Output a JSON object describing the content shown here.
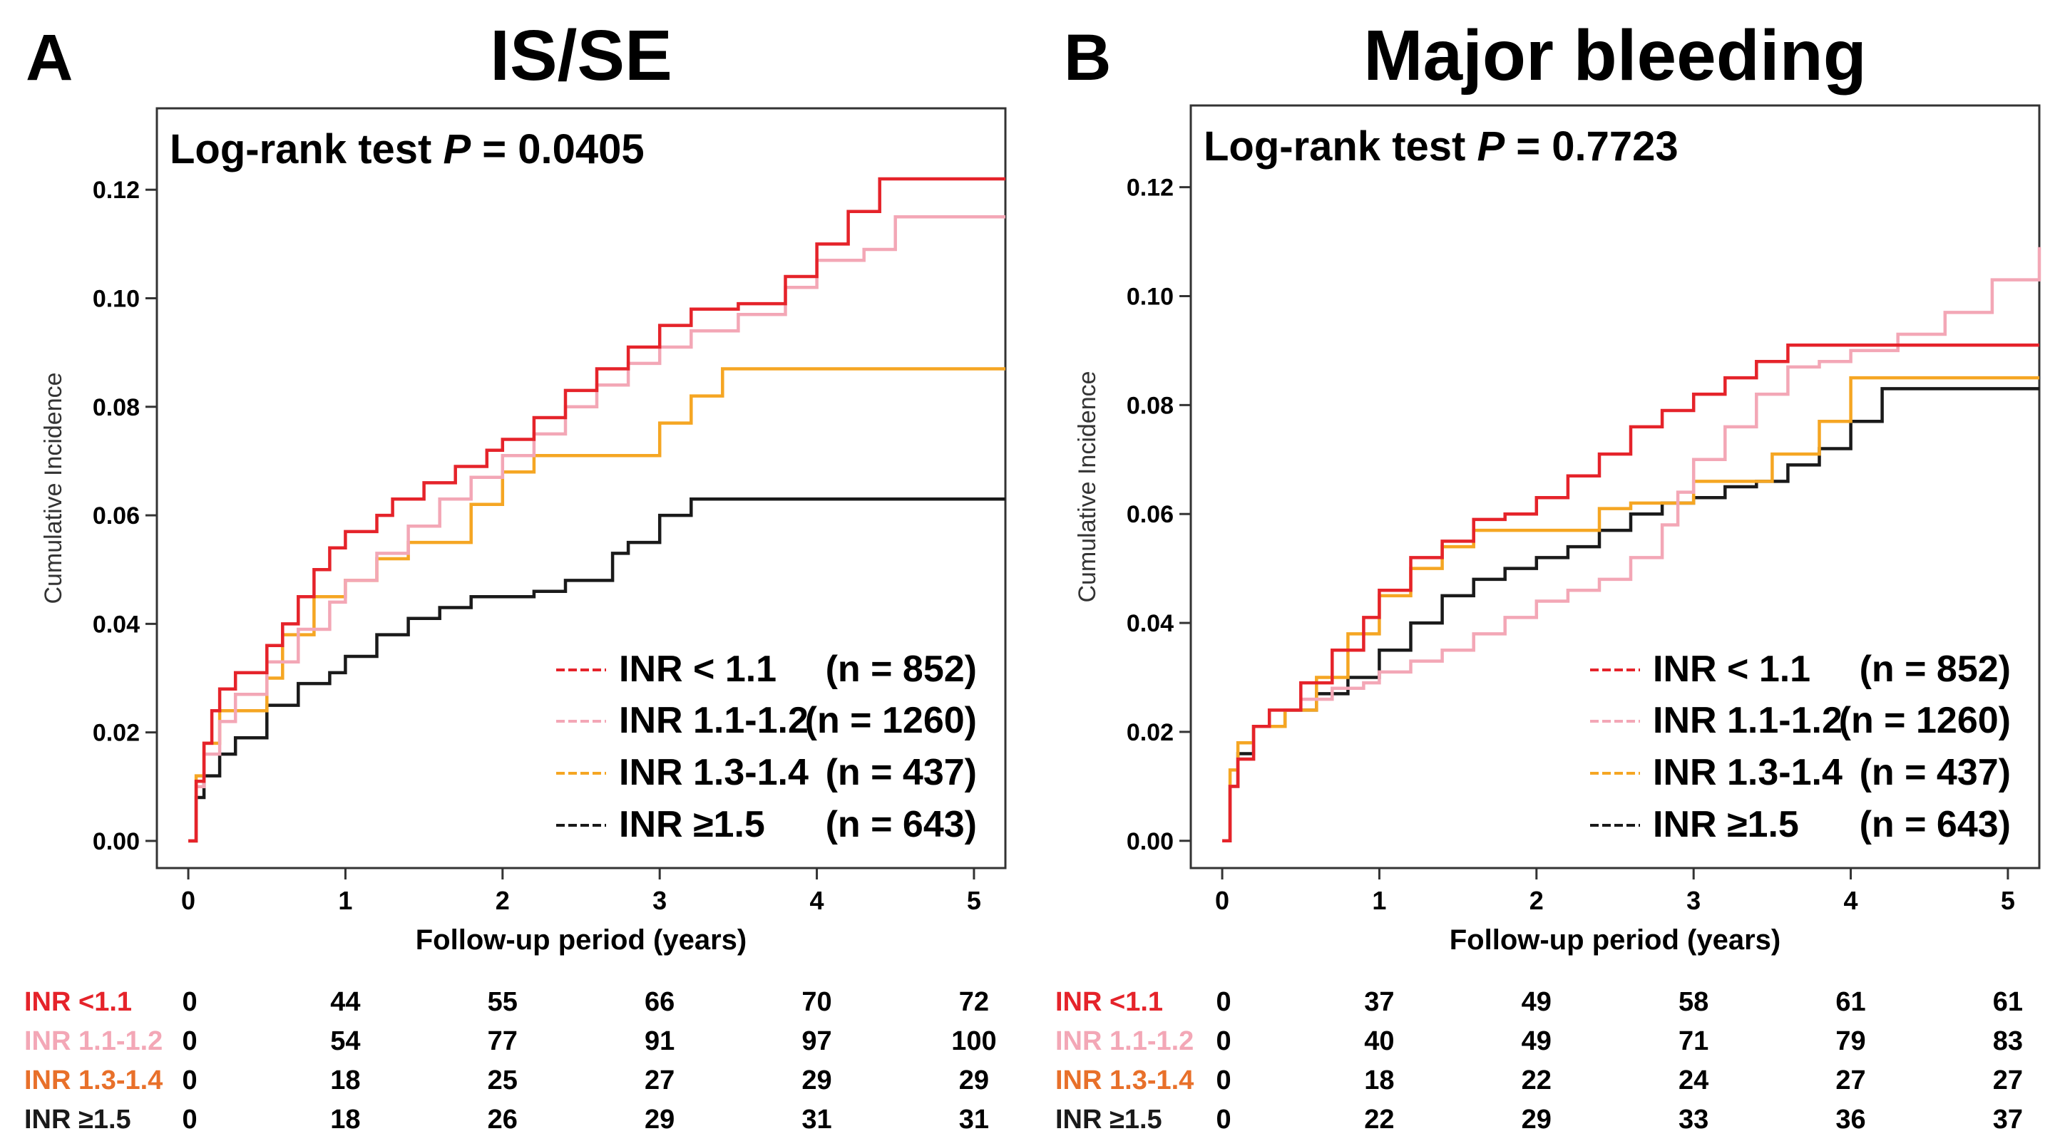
{
  "figure": {
    "palette": {
      "inr_lt_1_1": "#e5232a",
      "inr_1_1_1_2": "#f3a7b6",
      "inr_1_3_1_4": "#f5a623",
      "inr_ge_1_5": "#1a1a1a",
      "risk_label_1_3_1_4": "#e8702a"
    }
  },
  "chart_data": [
    {
      "type": "line",
      "panel_letter": "A",
      "title": "IS/SE",
      "annotation": {
        "prefix": "Log-rank test ",
        "p_symbol": "P",
        "suffix": " = 0.0405"
      },
      "xlabel": "Follow-up period (years)",
      "ylabel": "Cumulative Incidence",
      "xlim": [
        -0.2,
        5.2
      ],
      "ylim": [
        -0.005,
        0.135
      ],
      "xticks": [
        0,
        1,
        2,
        3,
        4,
        5
      ],
      "xtick_labels": [
        "0",
        "1",
        "2",
        "3",
        "4",
        "5"
      ],
      "yticks": [
        0.0,
        0.02,
        0.04,
        0.06,
        0.08,
        0.1,
        0.12
      ],
      "ytick_labels": [
        "0.00",
        "0.02",
        "0.04",
        "0.06",
        "0.08",
        "0.10",
        "0.12"
      ],
      "legend_position": "bottom-right",
      "series": [
        {
          "name": "INR < 1.1",
          "n_label": "(n = 852)",
          "color_key": "inr_lt_1_1",
          "x": [
            0,
            0.05,
            0.1,
            0.15,
            0.2,
            0.3,
            0.4,
            0.5,
            0.6,
            0.7,
            0.8,
            0.9,
            1.0,
            1.2,
            1.3,
            1.5,
            1.7,
            1.9,
            2.0,
            2.2,
            2.4,
            2.6,
            2.8,
            3.0,
            3.2,
            3.5,
            3.8,
            4.0,
            4.2,
            4.4,
            5.2
          ],
          "y": [
            0,
            0.011,
            0.018,
            0.024,
            0.028,
            0.031,
            0.031,
            0.036,
            0.04,
            0.045,
            0.05,
            0.054,
            0.057,
            0.06,
            0.063,
            0.066,
            0.069,
            0.072,
            0.074,
            0.078,
            0.083,
            0.087,
            0.091,
            0.095,
            0.098,
            0.099,
            0.104,
            0.11,
            0.116,
            0.122,
            0.122
          ]
        },
        {
          "name": "INR 1.1-1.2",
          "n_label": "(n = 1260)",
          "color_key": "inr_1_1_1_2",
          "x": [
            0,
            0.05,
            0.1,
            0.2,
            0.3,
            0.5,
            0.7,
            0.9,
            1.0,
            1.2,
            1.4,
            1.6,
            1.8,
            2.0,
            2.2,
            2.4,
            2.6,
            2.8,
            3.0,
            3.2,
            3.5,
            3.8,
            4.0,
            4.3,
            4.5,
            5.2
          ],
          "y": [
            0,
            0.01,
            0.016,
            0.022,
            0.027,
            0.033,
            0.039,
            0.044,
            0.048,
            0.053,
            0.058,
            0.063,
            0.067,
            0.071,
            0.075,
            0.08,
            0.084,
            0.088,
            0.091,
            0.094,
            0.097,
            0.102,
            0.107,
            0.109,
            0.115,
            0.115
          ]
        },
        {
          "name": "INR 1.3-1.4",
          "n_label": "(n = 437)",
          "color_key": "inr_1_3_1_4",
          "x": [
            0,
            0.05,
            0.1,
            0.2,
            0.5,
            0.6,
            0.8,
            1.0,
            1.2,
            1.4,
            1.6,
            1.8,
            2.0,
            2.2,
            2.4,
            2.6,
            2.8,
            3.0,
            3.2,
            3.4,
            5.2
          ],
          "y": [
            0,
            0.012,
            0.018,
            0.024,
            0.03,
            0.038,
            0.045,
            0.048,
            0.052,
            0.055,
            0.055,
            0.062,
            0.068,
            0.071,
            0.071,
            0.071,
            0.071,
            0.077,
            0.082,
            0.087,
            0.087
          ]
        },
        {
          "name": "INR ≥1.5",
          "n_label": "(n = 643)",
          "color_key": "inr_ge_1_5",
          "x": [
            0,
            0.05,
            0.1,
            0.2,
            0.3,
            0.5,
            0.7,
            0.9,
            1.0,
            1.2,
            1.4,
            1.6,
            1.8,
            2.0,
            2.2,
            2.4,
            2.6,
            2.7,
            2.8,
            3.0,
            3.2,
            5.2
          ],
          "y": [
            0,
            0.008,
            0.012,
            0.016,
            0.019,
            0.025,
            0.029,
            0.031,
            0.034,
            0.038,
            0.041,
            0.043,
            0.045,
            0.045,
            0.046,
            0.048,
            0.048,
            0.053,
            0.055,
            0.06,
            0.063,
            0.063
          ]
        }
      ],
      "risk_table": {
        "x_values": [
          0,
          1,
          2,
          3,
          4,
          5
        ],
        "rows": [
          {
            "label": "INR <1.1",
            "color_key": "inr_lt_1_1",
            "values": [
              "0",
              "44",
              "55",
              "66",
              "70",
              "72"
            ]
          },
          {
            "label": "INR 1.1-1.2",
            "color_key": "inr_1_1_1_2",
            "values": [
              "0",
              "54",
              "77",
              "91",
              "97",
              "100"
            ]
          },
          {
            "label": "INR 1.3-1.4",
            "color_key": "risk_label_1_3_1_4",
            "values": [
              "0",
              "18",
              "25",
              "27",
              "29",
              "29"
            ]
          },
          {
            "label": "INR ≥1.5",
            "color_key": "inr_ge_1_5",
            "values": [
              "0",
              "18",
              "26",
              "29",
              "31",
              "31"
            ]
          }
        ]
      }
    },
    {
      "type": "line",
      "panel_letter": "B",
      "title": "Major bleeding",
      "annotation": {
        "prefix": "Log-rank test ",
        "p_symbol": "P",
        "suffix": " = 0.7723"
      },
      "xlabel": "Follow-up period (years)",
      "ylabel": "Cumulative Incidence",
      "xlim": [
        -0.2,
        5.2
      ],
      "ylim": [
        -0.005,
        0.135
      ],
      "xticks": [
        0,
        1,
        2,
        3,
        4,
        5
      ],
      "xtick_labels": [
        "0",
        "1",
        "2",
        "3",
        "4",
        "5"
      ],
      "yticks": [
        0.0,
        0.02,
        0.04,
        0.06,
        0.08,
        0.1,
        0.12
      ],
      "ytick_labels": [
        "0.00",
        "0.02",
        "0.04",
        "0.06",
        "0.08",
        "0.10",
        "0.12"
      ],
      "legend_position": "bottom-right",
      "series": [
        {
          "name": "INR < 1.1",
          "n_label": "(n = 852)",
          "color_key": "inr_lt_1_1",
          "x": [
            0,
            0.05,
            0.1,
            0.2,
            0.3,
            0.5,
            0.7,
            0.9,
            1.0,
            1.2,
            1.4,
            1.6,
            1.8,
            2.0,
            2.2,
            2.4,
            2.6,
            2.8,
            3.0,
            3.2,
            3.4,
            3.6,
            5.2
          ],
          "y": [
            0,
            0.01,
            0.015,
            0.021,
            0.024,
            0.029,
            0.035,
            0.041,
            0.046,
            0.052,
            0.055,
            0.059,
            0.06,
            0.063,
            0.067,
            0.071,
            0.076,
            0.079,
            0.082,
            0.085,
            0.088,
            0.091,
            0.091
          ]
        },
        {
          "name": "INR 1.1-1.2",
          "n_label": "(n = 1260)",
          "color_key": "inr_1_1_1_2",
          "x": [
            0,
            0.05,
            0.1,
            0.2,
            0.3,
            0.5,
            0.7,
            0.9,
            1.0,
            1.2,
            1.4,
            1.6,
            1.8,
            2.0,
            2.2,
            2.4,
            2.6,
            2.8,
            2.9,
            3.0,
            3.2,
            3.4,
            3.6,
            3.8,
            4.0,
            4.3,
            4.6,
            4.9,
            5.2
          ],
          "y": [
            0,
            0.01,
            0.015,
            0.021,
            0.024,
            0.026,
            0.028,
            0.029,
            0.031,
            0.033,
            0.035,
            0.038,
            0.041,
            0.044,
            0.046,
            0.048,
            0.052,
            0.058,
            0.064,
            0.07,
            0.076,
            0.082,
            0.087,
            0.088,
            0.09,
            0.093,
            0.097,
            0.103,
            0.109
          ]
        },
        {
          "name": "INR 1.3-1.4",
          "n_label": "(n = 437)",
          "color_key": "inr_1_3_1_4",
          "x": [
            0,
            0.05,
            0.1,
            0.2,
            0.4,
            0.6,
            0.8,
            1.0,
            1.2,
            1.4,
            1.6,
            1.8,
            2.0,
            2.2,
            2.4,
            2.6,
            2.8,
            3.0,
            3.3,
            3.5,
            3.8,
            4.0,
            5.2
          ],
          "y": [
            0,
            0.013,
            0.018,
            0.021,
            0.024,
            0.03,
            0.038,
            0.045,
            0.05,
            0.054,
            0.057,
            0.057,
            0.057,
            0.057,
            0.061,
            0.062,
            0.062,
            0.066,
            0.066,
            0.071,
            0.077,
            0.085,
            0.085
          ]
        },
        {
          "name": "INR ≥1.5",
          "n_label": "(n = 643)",
          "color_key": "inr_ge_1_5",
          "x": [
            0,
            0.05,
            0.1,
            0.2,
            0.4,
            0.6,
            0.8,
            1.0,
            1.2,
            1.4,
            1.6,
            1.8,
            2.0,
            2.2,
            2.4,
            2.6,
            2.8,
            3.0,
            3.2,
            3.4,
            3.6,
            3.8,
            4.0,
            4.2,
            5.2
          ],
          "y": [
            0,
            0.01,
            0.016,
            0.021,
            0.024,
            0.027,
            0.03,
            0.035,
            0.04,
            0.045,
            0.048,
            0.05,
            0.052,
            0.054,
            0.057,
            0.06,
            0.062,
            0.063,
            0.065,
            0.066,
            0.069,
            0.072,
            0.077,
            0.083,
            0.083
          ]
        }
      ],
      "risk_table": {
        "x_values": [
          0,
          1,
          2,
          3,
          4,
          5
        ],
        "rows": [
          {
            "label": "INR <1.1",
            "color_key": "inr_lt_1_1",
            "values": [
              "0",
              "37",
              "49",
              "58",
              "61",
              "61"
            ]
          },
          {
            "label": "INR 1.1-1.2",
            "color_key": "inr_1_1_1_2",
            "values": [
              "0",
              "40",
              "49",
              "71",
              "79",
              "83"
            ]
          },
          {
            "label": "INR 1.3-1.4",
            "color_key": "risk_label_1_3_1_4",
            "values": [
              "0",
              "18",
              "22",
              "24",
              "27",
              "27"
            ]
          },
          {
            "label": "INR ≥1.5",
            "color_key": "inr_ge_1_5",
            "values": [
              "0",
              "22",
              "29",
              "33",
              "36",
              "37"
            ]
          }
        ]
      }
    }
  ]
}
